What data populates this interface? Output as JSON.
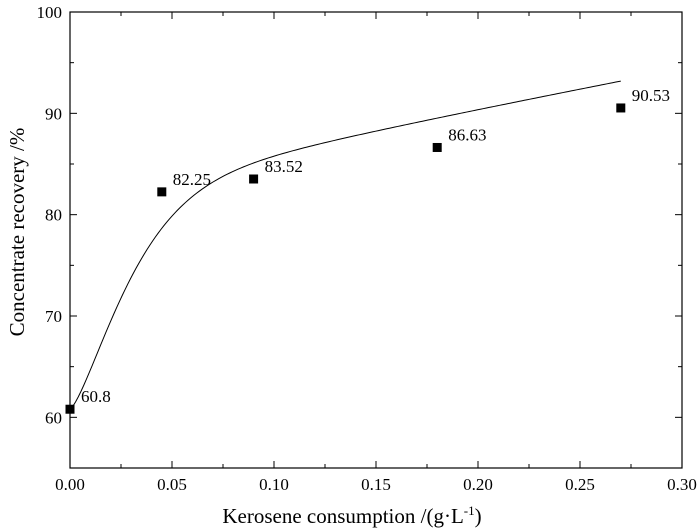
{
  "chart_data": {
    "type": "scatter",
    "title": "",
    "xlabel": "Kerosene consumption /(g·L",
    "xlabel_superscript": "-1",
    "xlabel_suffix": ")",
    "ylabel": "Concentrate recovery /%",
    "xlim": [
      0.0,
      0.3
    ],
    "ylim": [
      55,
      100
    ],
    "x_ticks": [
      "0.00",
      "0.05",
      "0.10",
      "0.15",
      "0.20",
      "0.25",
      "0.30"
    ],
    "x_tick_values": [
      0.0,
      0.05,
      0.1,
      0.15,
      0.2,
      0.25,
      0.3
    ],
    "y_ticks": [
      "60",
      "70",
      "80",
      "90",
      "100"
    ],
    "y_tick_values": [
      60,
      70,
      80,
      90,
      100
    ],
    "grid": false,
    "series": [
      {
        "name": "Concentrate recovery",
        "marker": "square",
        "line": "smooth fit",
        "x": [
          0.0,
          0.045,
          0.09,
          0.18,
          0.27
        ],
        "y": [
          60.8,
          82.25,
          83.52,
          86.63,
          90.53
        ],
        "labels": [
          "60.8",
          "82.25",
          "83.52",
          "86.63",
          "90.53"
        ]
      }
    ]
  }
}
